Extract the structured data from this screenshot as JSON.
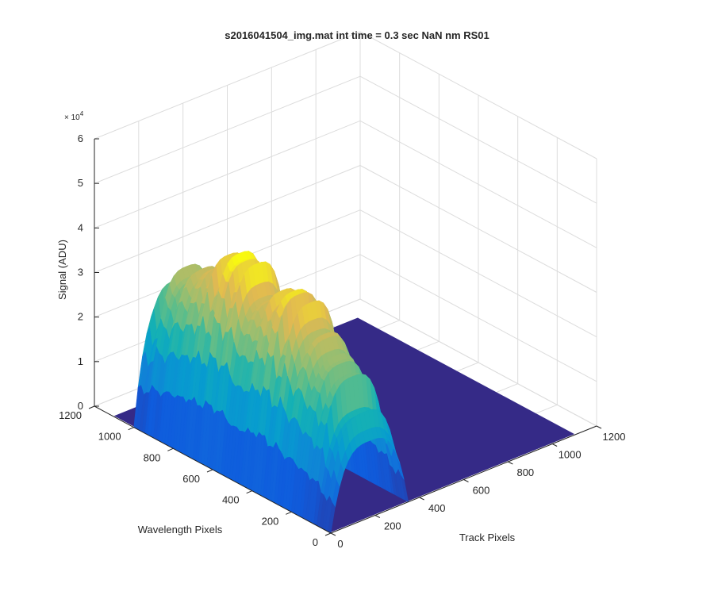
{
  "chart_data": {
    "type": "surface",
    "title": "s2016041504_img.mat int time = 0.3 sec  NaN nm RS01",
    "xlabel": "Track Pixels",
    "ylabel": "Wavelength Pixels",
    "zlabel": "Signal (ADU)",
    "z_exponent_label": "× 10",
    "z_exponent_power": "4",
    "xlim": [
      0,
      1200
    ],
    "ylim": [
      0,
      1200
    ],
    "zlim": [
      0,
      6
    ],
    "x_ticks": [
      "0",
      "200",
      "400",
      "600",
      "800",
      "1000",
      "1200"
    ],
    "y_ticks": [
      "0",
      "200",
      "400",
      "600",
      "800",
      "1000",
      "1200"
    ],
    "z_ticks": [
      "0",
      "1",
      "2",
      "3",
      "4",
      "5",
      "6"
    ],
    "grid": true,
    "colormap": "parula",
    "surface": {
      "base_extent": {
        "x": [
          0,
          1100
        ],
        "y": [
          0,
          1100
        ]
      },
      "signal_region": {
        "track_pixels": [
          0,
          350
        ],
        "wavelength_pixels": [
          0,
          1000
        ]
      },
      "peak_value_x1e4": 4.2,
      "profile_wavelength": [
        0,
        100,
        200,
        300,
        400,
        500,
        600,
        700,
        800,
        900,
        1000
      ],
      "profile_peak_x1e4": [
        1.6,
        2.8,
        3.3,
        3.7,
        4.0,
        3.5,
        4.2,
        3.9,
        3.6,
        3.2,
        2.6
      ]
    }
  }
}
